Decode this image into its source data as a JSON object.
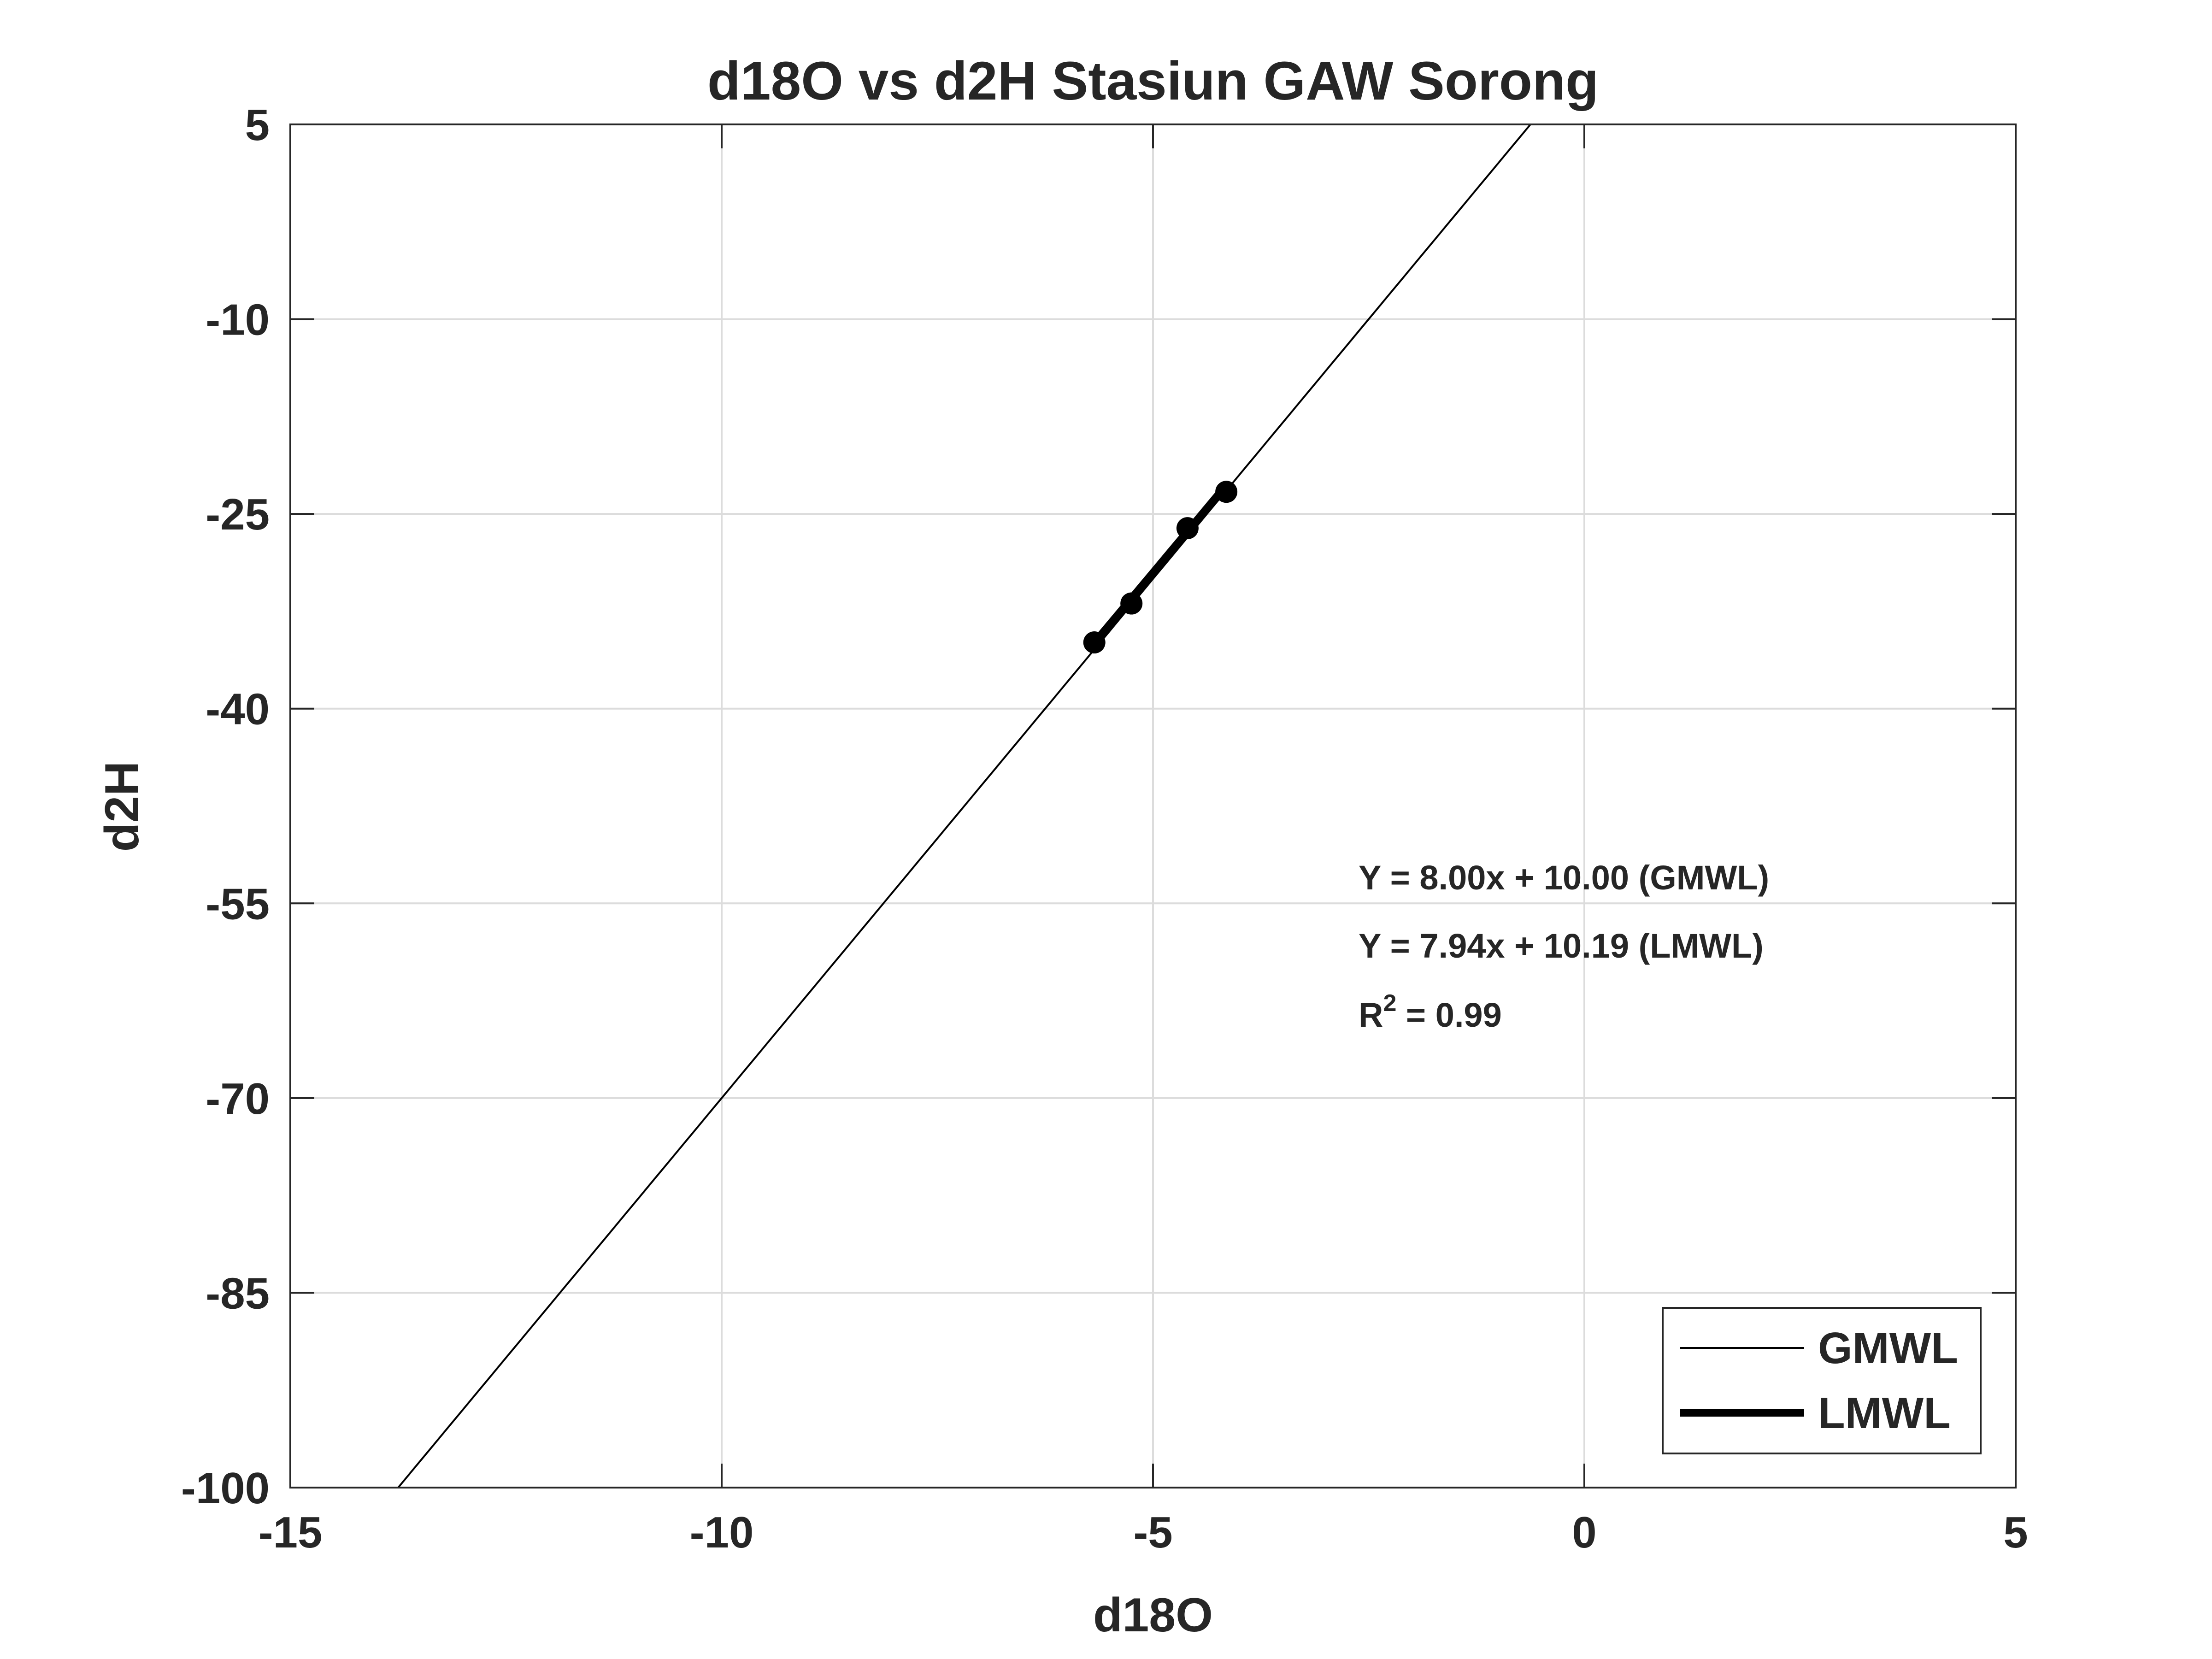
{
  "chart_data": {
    "type": "line",
    "title": "d18O vs d2H Stasiun GAW Sorong",
    "xlabel": "d18O",
    "ylabel": "d2H",
    "xlim": [
      -15,
      5
    ],
    "ylim": [
      -100,
      5
    ],
    "xticks": [
      -15,
      -10,
      -5,
      0,
      5
    ],
    "yticks": [
      -100,
      -85,
      -70,
      -55,
      -40,
      -25,
      -10,
      5
    ],
    "xtick_labels": [
      "-15",
      "-10",
      "-5",
      "0",
      "5"
    ],
    "ytick_labels": [
      "-100",
      "-85",
      "-70",
      "-55",
      "-40",
      "-25",
      "-10",
      "5"
    ],
    "grid": true,
    "legend_position": "bottom-right",
    "series": [
      {
        "name": "GMWL",
        "kind": "line",
        "slope": 8.0,
        "intercept": 10.0,
        "color": "#000000"
      },
      {
        "name": "LMWL",
        "kind": "line",
        "slope": 7.94,
        "intercept": 10.19,
        "x": [
          -5.68,
          -4.15
        ],
        "color": "#000000"
      }
    ],
    "points": [
      {
        "x": -5.68,
        "y": -34.9
      },
      {
        "x": -5.25,
        "y": -31.9
      },
      {
        "x": -4.6,
        "y": -26.1
      },
      {
        "x": -4.15,
        "y": -23.3
      }
    ],
    "annotations": [
      {
        "id": "gmwl-eq",
        "text": "Y = 8.00x + 10.00 (GMWL)"
      },
      {
        "id": "lmwl-eq",
        "text": "Y = 7.94x + 10.19 (LMWL)"
      },
      {
        "id": "r2",
        "prefix": "R",
        "superscript": "2",
        "suffix": " = 0.99"
      }
    ]
  }
}
